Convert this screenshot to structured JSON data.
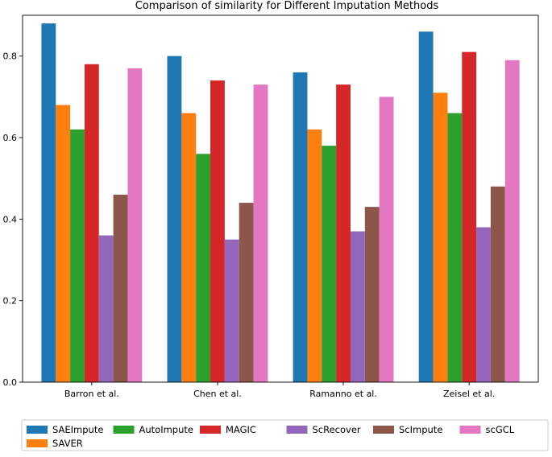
{
  "chart_data": {
    "type": "bar",
    "title": "Comparison of similarity for Different Imputation Methods",
    "xlabel": "",
    "ylabel": "",
    "ylim": [
      0,
      0.9
    ],
    "yticks": [
      0.0,
      0.2,
      0.4,
      0.6,
      0.8
    ],
    "ytick_labels": [
      "0.0",
      "0.2",
      "0.4",
      "0.6",
      "0.8"
    ],
    "grid": false,
    "legend_position": "bottom",
    "categories": [
      "Barron et al.",
      "Chen et al.",
      "Ramanno et al.",
      "Zeisel et al."
    ],
    "series": [
      {
        "name": "SAEImpute",
        "color": "#1f77b4",
        "values": [
          0.88,
          0.8,
          0.76,
          0.86
        ]
      },
      {
        "name": "SAVER",
        "color": "#ff7f0e",
        "values": [
          0.68,
          0.66,
          0.62,
          0.71
        ]
      },
      {
        "name": "AutoImpute",
        "color": "#2ca02c",
        "values": [
          0.62,
          0.56,
          0.58,
          0.66
        ]
      },
      {
        "name": "MAGIC",
        "color": "#d62728",
        "values": [
          0.78,
          0.74,
          0.73,
          0.81
        ]
      },
      {
        "name": "ScRecover",
        "color": "#9467bd",
        "values": [
          0.36,
          0.35,
          0.37,
          0.38
        ]
      },
      {
        "name": "ScImpute",
        "color": "#8c564b",
        "values": [
          0.46,
          0.44,
          0.43,
          0.48
        ]
      },
      {
        "name": "scGCL",
        "color": "#e377c2",
        "values": [
          0.77,
          0.73,
          0.7,
          0.79
        ]
      }
    ]
  }
}
